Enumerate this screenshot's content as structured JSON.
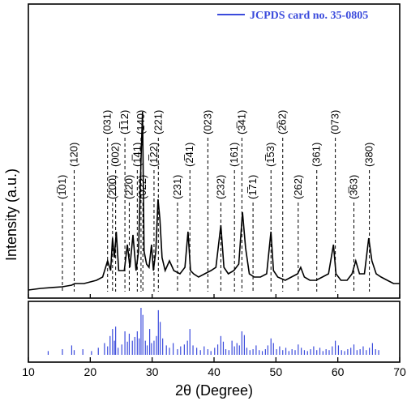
{
  "chart_data": {
    "type": "line",
    "xlabel": "2θ (Degree)",
    "ylabel": "Intensity (a.u.)",
    "xlim": [
      10,
      70
    ],
    "x_ticks": [
      "10",
      "20",
      "30",
      "40",
      "50",
      "60",
      "70"
    ],
    "legend": {
      "label": "JCPDS card no. 35-0805",
      "position": "top-right",
      "color": "#3b4bdc"
    },
    "line_color": "#000000",
    "reference_color": "#3b4bdc",
    "pattern": {
      "x": [
        10,
        12,
        14,
        15.5,
        17,
        17.5,
        19,
        21,
        22,
        22.8,
        23.3,
        23.6,
        23.9,
        24.2,
        24.6,
        25.5,
        26,
        26.4,
        26.9,
        27.4,
        27.8,
        28.2,
        28.45,
        28.7,
        29.1,
        29.5,
        29.9,
        30.2,
        30.6,
        30.95,
        31.25,
        31.6,
        32.1,
        32.8,
        33.5,
        34.5,
        35.3,
        35.8,
        36.2,
        36.7,
        37.5,
        38.5,
        39.5,
        40.3,
        41.1,
        41.6,
        42.3,
        43.2,
        44.0,
        44.6,
        45.1,
        45.7,
        46.5,
        47.5,
        48.5,
        49.2,
        49.6,
        50.3,
        51.5,
        52.5,
        53.5,
        54.0,
        54.6,
        55.5,
        56.5,
        57.5,
        58.5,
        59.3,
        59.7,
        60.5,
        61.5,
        62.3,
        62.9,
        63.5,
        64.3,
        65.0,
        65.5,
        66.2,
        67.0,
        68.0,
        69.0,
        70.0
      ],
      "y": [
        0.0,
        0.005,
        0.008,
        0.01,
        0.015,
        0.02,
        0.02,
        0.03,
        0.04,
        0.09,
        0.06,
        0.16,
        0.1,
        0.18,
        0.06,
        0.06,
        0.14,
        0.07,
        0.17,
        0.06,
        0.12,
        0.4,
        0.55,
        0.12,
        0.08,
        0.07,
        0.14,
        0.06,
        0.12,
        0.28,
        0.22,
        0.1,
        0.06,
        0.09,
        0.06,
        0.05,
        0.07,
        0.18,
        0.06,
        0.05,
        0.04,
        0.05,
        0.06,
        0.07,
        0.2,
        0.07,
        0.05,
        0.06,
        0.08,
        0.24,
        0.13,
        0.05,
        0.04,
        0.04,
        0.05,
        0.18,
        0.06,
        0.04,
        0.03,
        0.04,
        0.05,
        0.07,
        0.04,
        0.03,
        0.03,
        0.04,
        0.05,
        0.14,
        0.05,
        0.03,
        0.03,
        0.05,
        0.09,
        0.05,
        0.05,
        0.16,
        0.09,
        0.05,
        0.04,
        0.03,
        0.02,
        0.02
      ]
    },
    "reference_peaks": {
      "x": [
        13.2,
        15.5,
        17.0,
        17.4,
        18.8,
        20.2,
        21.3,
        22.3,
        22.8,
        23.2,
        23.6,
        23.9,
        24.1,
        24.5,
        25.1,
        25.6,
        26.0,
        26.3,
        26.8,
        27.2,
        27.6,
        27.9,
        28.2,
        28.5,
        28.9,
        29.2,
        29.6,
        29.9,
        30.3,
        30.7,
        31.0,
        31.3,
        31.7,
        32.3,
        32.8,
        33.4,
        34.1,
        34.6,
        35.2,
        35.7,
        36.1,
        36.6,
        37.2,
        37.8,
        38.4,
        39.0,
        39.5,
        40.1,
        40.6,
        41.1,
        41.5,
        41.9,
        42.4,
        42.9,
        43.3,
        43.7,
        44.1,
        44.5,
        44.9,
        45.3,
        45.8,
        46.3,
        46.8,
        47.3,
        47.8,
        48.3,
        48.7,
        49.2,
        49.6,
        50.1,
        50.6,
        51.1,
        51.6,
        52.1,
        52.6,
        53.1,
        53.6,
        54.1,
        54.6,
        55.1,
        55.6,
        56.1,
        56.6,
        57.1,
        57.6,
        58.1,
        58.6,
        59.1,
        59.6,
        60.1,
        60.6,
        61.1,
        61.6,
        62.1,
        62.6,
        63.1,
        63.6,
        64.1,
        64.6,
        65.1,
        65.6,
        66.1,
        66.6
      ],
      "heights": [
        0.08,
        0.12,
        0.2,
        0.1,
        0.12,
        0.08,
        0.15,
        0.25,
        0.18,
        0.4,
        0.55,
        0.3,
        0.6,
        0.15,
        0.22,
        0.5,
        0.28,
        0.45,
        0.3,
        0.38,
        0.5,
        0.35,
        1.0,
        0.85,
        0.3,
        0.2,
        0.55,
        0.25,
        0.3,
        0.4,
        0.95,
        0.7,
        0.35,
        0.2,
        0.15,
        0.25,
        0.12,
        0.18,
        0.22,
        0.3,
        0.55,
        0.2,
        0.15,
        0.1,
        0.18,
        0.12,
        0.08,
        0.15,
        0.22,
        0.4,
        0.28,
        0.12,
        0.1,
        0.3,
        0.18,
        0.25,
        0.2,
        0.5,
        0.42,
        0.15,
        0.1,
        0.12,
        0.2,
        0.1,
        0.08,
        0.12,
        0.2,
        0.35,
        0.25,
        0.12,
        0.18,
        0.1,
        0.15,
        0.08,
        0.12,
        0.1,
        0.22,
        0.15,
        0.1,
        0.08,
        0.12,
        0.18,
        0.1,
        0.15,
        0.08,
        0.12,
        0.1,
        0.18,
        0.3,
        0.2,
        0.1,
        0.08,
        0.12,
        0.15,
        0.22,
        0.1,
        0.12,
        0.18,
        0.1,
        0.15,
        0.25,
        0.12,
        0.1
      ]
    },
    "peak_labels": [
      {
        "x": 15.5,
        "label": "(1̅01)"
      },
      {
        "x": 17.4,
        "label": "(120)"
      },
      {
        "x": 22.8,
        "label": "(031)"
      },
      {
        "x": 23.6,
        "label": "(200)"
      },
      {
        "x": 24.1,
        "label": "(002)"
      },
      {
        "x": 25.6,
        "label": "(1̅12)"
      },
      {
        "x": 26.3,
        "label": "(220)"
      },
      {
        "x": 27.6,
        "label": "(1̅41)"
      },
      {
        "x": 28.2,
        "label": "(140)"
      },
      {
        "x": 28.5,
        "label": "(022)"
      },
      {
        "x": 30.3,
        "label": "(1̅22)"
      },
      {
        "x": 31.0,
        "label": "(221)"
      },
      {
        "x": 34.1,
        "label": "(231)"
      },
      {
        "x": 36.1,
        "label": "(2̅41)"
      },
      {
        "x": 39.0,
        "label": "(023)"
      },
      {
        "x": 41.1,
        "label": "(232)"
      },
      {
        "x": 43.3,
        "label": "(161)"
      },
      {
        "x": 44.5,
        "label": "(3̅41)"
      },
      {
        "x": 46.3,
        "label": "(1̅71)"
      },
      {
        "x": 49.2,
        "label": "(1̅53)"
      },
      {
        "x": 51.1,
        "label": "(2̅62)"
      },
      {
        "x": 53.6,
        "label": "(262)"
      },
      {
        "x": 56.6,
        "label": "(361)"
      },
      {
        "x": 59.6,
        "label": "(073)"
      },
      {
        "x": 62.6,
        "label": "(3̅63)"
      },
      {
        "x": 65.1,
        "label": "(380)"
      }
    ]
  }
}
